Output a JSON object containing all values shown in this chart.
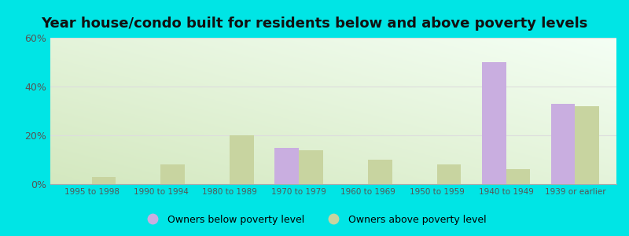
{
  "title": "Year house/condo built for residents below and above poverty levels",
  "categories": [
    "1995 to 1998",
    "1990 to 1994",
    "1980 to 1989",
    "1970 to 1979",
    "1960 to 1969",
    "1950 to 1959",
    "1940 to 1949",
    "1939 or earlier"
  ],
  "below_poverty": [
    0,
    0,
    0,
    15,
    0,
    0,
    50,
    33
  ],
  "above_poverty": [
    3,
    8,
    20,
    14,
    10,
    8,
    6,
    32
  ],
  "below_color": "#c9aee0",
  "above_color": "#c8d4a0",
  "ylim": [
    0,
    60
  ],
  "yticks": [
    0,
    20,
    40,
    60
  ],
  "ytick_labels": [
    "0%",
    "20%",
    "40%",
    "60%"
  ],
  "legend_below": "Owners below poverty level",
  "legend_above": "Owners above poverty level",
  "outer_background": "#00e5e5",
  "title_fontsize": 13,
  "bar_width": 0.35,
  "tick_color": "#555555",
  "grid_color": "#dddddd"
}
